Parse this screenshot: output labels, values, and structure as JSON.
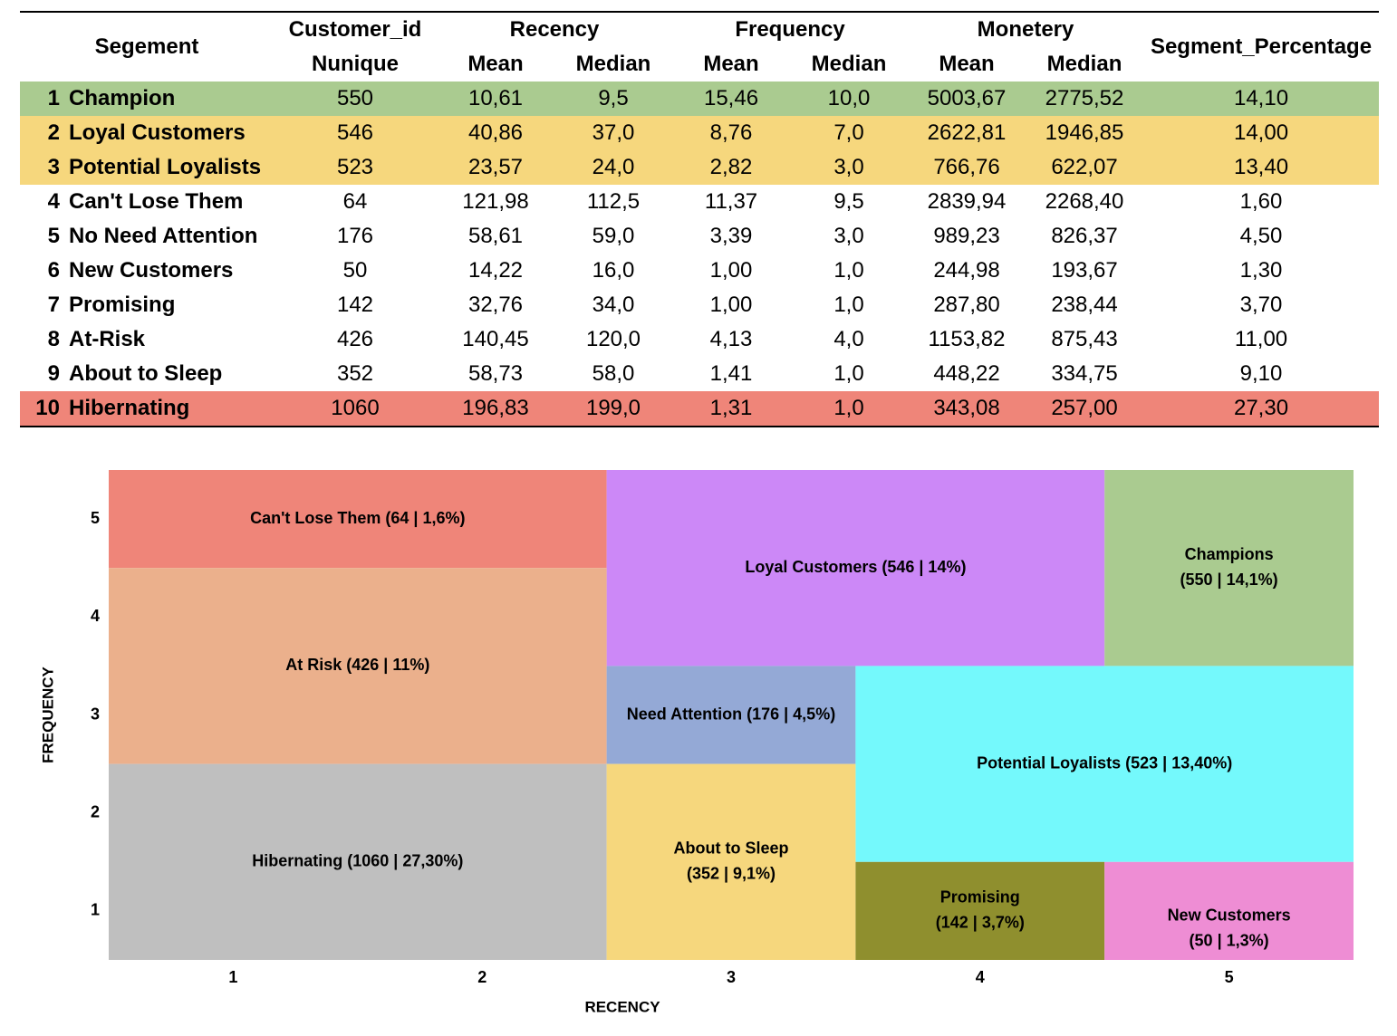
{
  "table": {
    "header_row1": {
      "segment": "Segement",
      "customer_id": "Customer_id",
      "recency": "Recency",
      "frequency": "Frequency",
      "monetary": "Monetery",
      "segment_percentage": "Segment_Percentage"
    },
    "header_row2": {
      "customer_id": "Nunique",
      "recency_mean": "Mean",
      "recency_median": "Median",
      "frequency_mean": "Mean",
      "frequency_median": "Median",
      "monetary_mean": "Mean",
      "monetary_median": "Median"
    },
    "highlight_colors": {
      "green": "#aacb90",
      "yellow": "#f6d77d",
      "red": "#ef8579",
      "none": "#ffffff"
    },
    "rows": [
      {
        "num": "1",
        "segment": "Champion",
        "nunique": "550",
        "rec_mean": "10,61",
        "rec_median": "9,5",
        "freq_mean": "15,46",
        "freq_median": "10,0",
        "mon_mean": "5003,67",
        "mon_median": "2775,52",
        "pct": "14,10",
        "highlight": "green"
      },
      {
        "num": "2",
        "segment": "Loyal Customers",
        "nunique": "546",
        "rec_mean": "40,86",
        "rec_median": "37,0",
        "freq_mean": "8,76",
        "freq_median": "7,0",
        "mon_mean": "2622,81",
        "mon_median": "1946,85",
        "pct": "14,00",
        "highlight": "yellow"
      },
      {
        "num": "3",
        "segment": "Potential Loyalists",
        "nunique": "523",
        "rec_mean": "23,57",
        "rec_median": "24,0",
        "freq_mean": "2,82",
        "freq_median": "3,0",
        "mon_mean": "766,76",
        "mon_median": "622,07",
        "pct": "13,40",
        "highlight": "yellow"
      },
      {
        "num": "4",
        "segment": "Can't Lose Them",
        "nunique": "64",
        "rec_mean": "121,98",
        "rec_median": "112,5",
        "freq_mean": "11,37",
        "freq_median": "9,5",
        "mon_mean": "2839,94",
        "mon_median": "2268,40",
        "pct": "1,60",
        "highlight": "none"
      },
      {
        "num": "5",
        "segment": "No Need Attention",
        "nunique": "176",
        "rec_mean": "58,61",
        "rec_median": "59,0",
        "freq_mean": "3,39",
        "freq_median": "3,0",
        "mon_mean": "989,23",
        "mon_median": "826,37",
        "pct": "4,50",
        "highlight": "none"
      },
      {
        "num": "6",
        "segment": "New Customers",
        "nunique": "50",
        "rec_mean": "14,22",
        "rec_median": "16,0",
        "freq_mean": "1,00",
        "freq_median": "1,0",
        "mon_mean": "244,98",
        "mon_median": "193,67",
        "pct": "1,30",
        "highlight": "none"
      },
      {
        "num": "7",
        "segment": "Promising",
        "nunique": "142",
        "rec_mean": "32,76",
        "rec_median": "34,0",
        "freq_mean": "1,00",
        "freq_median": "1,0",
        "mon_mean": "287,80",
        "mon_median": "238,44",
        "pct": "3,70",
        "highlight": "none"
      },
      {
        "num": "8",
        "segment": "At-Risk",
        "nunique": "426",
        "rec_mean": "140,45",
        "rec_median": "120,0",
        "freq_mean": "4,13",
        "freq_median": "4,0",
        "mon_mean": "1153,82",
        "mon_median": "875,43",
        "pct": "11,00",
        "highlight": "none"
      },
      {
        "num": "9",
        "segment": "About to Sleep",
        "nunique": "352",
        "rec_mean": "58,73",
        "rec_median": "58,0",
        "freq_mean": "1,41",
        "freq_median": "1,0",
        "mon_mean": "448,22",
        "mon_median": "334,75",
        "pct": "9,10",
        "highlight": "none"
      },
      {
        "num": "10",
        "segment": "Hibernating",
        "nunique": "1060",
        "rec_mean": "196,83",
        "rec_median": "199,0",
        "freq_mean": "1,31",
        "freq_median": "1,0",
        "mon_mean": "343,08",
        "mon_median": "257,00",
        "pct": "27,30",
        "highlight": "red"
      }
    ]
  },
  "chart_data": {
    "type": "heatmap",
    "xlabel": "RECENCY",
    "ylabel": "FREQUENCY",
    "xlim": [
      0.5,
      5.5
    ],
    "ylim": [
      0.5,
      5.5
    ],
    "xticks": [
      "1",
      "2",
      "3",
      "4",
      "5"
    ],
    "yticks": [
      "1",
      "2",
      "3",
      "4",
      "5"
    ],
    "grid": false,
    "segments": [
      {
        "name": "Can't Lose Them",
        "lines": [
          "Can't Lose Them (64 | 1,6%)"
        ],
        "recency": [
          1,
          2
        ],
        "frequency": [
          5,
          5
        ],
        "color": "#ef8579"
      },
      {
        "name": "Loyal Customers",
        "lines": [
          "Loyal Customers (546 | 14%)"
        ],
        "recency": [
          3,
          4
        ],
        "frequency": [
          4,
          5
        ],
        "color": "#cc88f7"
      },
      {
        "name": "Champions",
        "lines": [
          "Champions",
          "(550 | 14,1%)"
        ],
        "recency": [
          5,
          5
        ],
        "frequency": [
          4,
          5
        ],
        "color": "#aacb90"
      },
      {
        "name": "At Risk",
        "lines": [
          "At Risk (426 | 11%)"
        ],
        "recency": [
          1,
          2
        ],
        "frequency": [
          3,
          4
        ],
        "color": "#ebb08c"
      },
      {
        "name": "Need Attention",
        "lines": [
          "Need Attention (176 | 4,5%)"
        ],
        "recency": [
          3,
          3
        ],
        "frequency": [
          3,
          3
        ],
        "color": "#94a9d6"
      },
      {
        "name": "Potential Loyalists",
        "lines": [
          "Potential Loyalists (523 | 13,40%)"
        ],
        "recency": [
          4,
          5
        ],
        "frequency": [
          2,
          3
        ],
        "color": "#74f9fc"
      },
      {
        "name": "Hibernating",
        "lines": [
          "Hibernating (1060 | 27,30%)"
        ],
        "recency": [
          1,
          2
        ],
        "frequency": [
          1,
          2
        ],
        "color": "#bfbfbf"
      },
      {
        "name": "About to Sleep",
        "lines": [
          "About to Sleep",
          "(352 | 9,1%)"
        ],
        "recency": [
          3,
          3
        ],
        "frequency": [
          1,
          2
        ],
        "color": "#f6d77d"
      },
      {
        "name": "Promising",
        "lines": [
          "Promising",
          "(142 | 3,7%)"
        ],
        "recency": [
          4,
          4
        ],
        "frequency": [
          1,
          1
        ],
        "color": "#8f8f2e"
      },
      {
        "name": "New Customers",
        "lines": [
          "New Customers",
          "(50 | 1,3%)"
        ],
        "recency": [
          5,
          5
        ],
        "frequency": [
          1,
          1
        ],
        "color": "#ee8dd4",
        "label_offset": "low"
      }
    ]
  }
}
